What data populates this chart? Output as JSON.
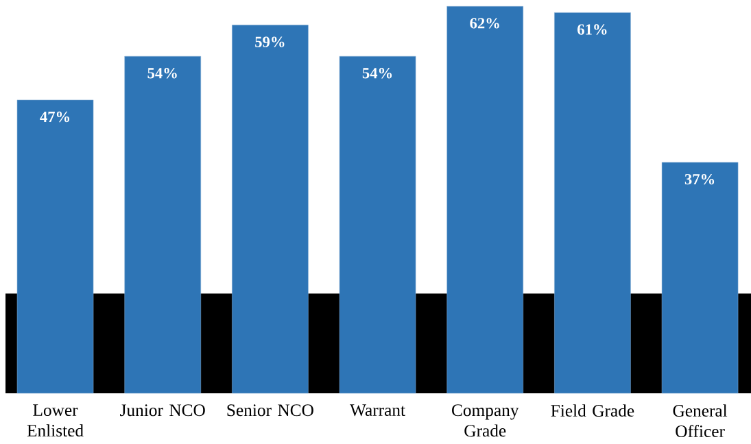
{
  "chart_data": {
    "type": "bar",
    "categories": [
      "Lower Enlisted",
      "Junior NCO",
      "Senior NCO",
      "Warrant",
      "Company Grade",
      "Field Grade",
      "General Officer"
    ],
    "values": [
      47,
      54,
      59,
      54,
      62,
      61,
      37
    ],
    "value_labels": [
      "47%",
      "54%",
      "59%",
      "54%",
      "62%",
      "61%",
      "37%"
    ],
    "color": "#2e75b6",
    "bands": [
      {
        "axis": "y",
        "from": 0,
        "to": 16,
        "color": "#000000"
      }
    ]
  }
}
